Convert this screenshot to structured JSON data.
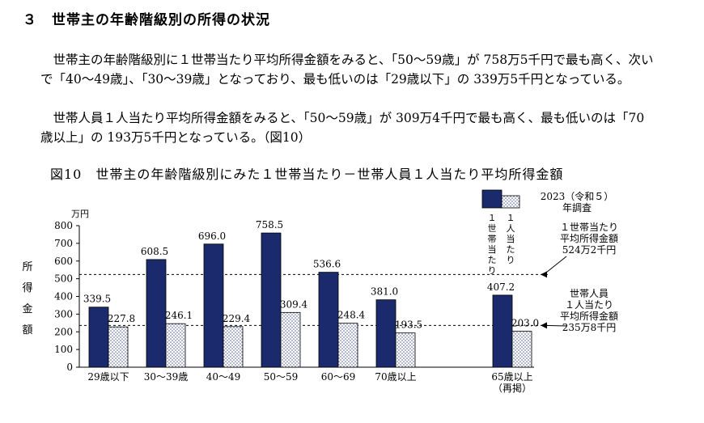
{
  "heading": "３　世帯主の年齢階級別の所得の状況",
  "paragraphs": [
    "世帯主の年齢階級別に１世帯当たり平均所得金額をみると、「50～59歳」が 758万5千円で最も高く、次いで「40～49歳」、「30～39歳」となっており、最も低いのは「29歳以下」の 339万5千円となっている。",
    "世帯人員１人当たり平均所得金額をみると、「50～59歳」が 309万4千円で最も高く、最も低いのは「70歳以上」の 193万5千円となっている。（図10）"
  ],
  "figure_title": "図10　世帯主の年齢階級別にみた１世帯当たり－世帯人員１人当たり平均所得金額",
  "chart_data": {
    "type": "bar",
    "categories": [
      "29歳以下",
      "30～39歳",
      "40～49",
      "50～59",
      "60～69",
      "70歳以上",
      "65歳以上"
    ],
    "category_notes": [
      "",
      "",
      "",
      "",
      "",
      "",
      "（再掲）"
    ],
    "series": [
      {
        "name": "１世帯当たり",
        "values": [
          339.5,
          608.5,
          696.0,
          758.5,
          536.6,
          381.0,
          407.2
        ],
        "color": "#1a2a6c",
        "pattern": "solid"
      },
      {
        "name": "１人当たり",
        "values": [
          227.8,
          246.1,
          229.4,
          309.4,
          248.4,
          193.5,
          203.0
        ],
        "color": "#ffffff",
        "pattern": "dots"
      }
    ],
    "value_labels": [
      [
        "339.5",
        "608.5",
        "696.0",
        "758.5",
        "536.6",
        "381.0",
        "407.2"
      ],
      [
        "227.8",
        "246.1",
        "229.4",
        "309.4",
        "248.4",
        "193.5",
        "203.0"
      ]
    ],
    "ylim": [
      0,
      800
    ],
    "yticks": [
      0,
      100,
      200,
      300,
      400,
      500,
      600,
      700,
      800
    ],
    "yunit": "万円",
    "ylabel": "所得金額",
    "legend_year": "2023（令和５）年調査",
    "legend_placement": "top-right",
    "reference_lines": [
      {
        "value": 524.2,
        "label_lines": [
          "１世帯当たり",
          "平均所得金額",
          "524万2千円"
        ]
      },
      {
        "value": 235.8,
        "label_lines": [
          "世帯人員",
          "１人当たり",
          "平均所得金額",
          "235万8千円"
        ]
      }
    ]
  }
}
